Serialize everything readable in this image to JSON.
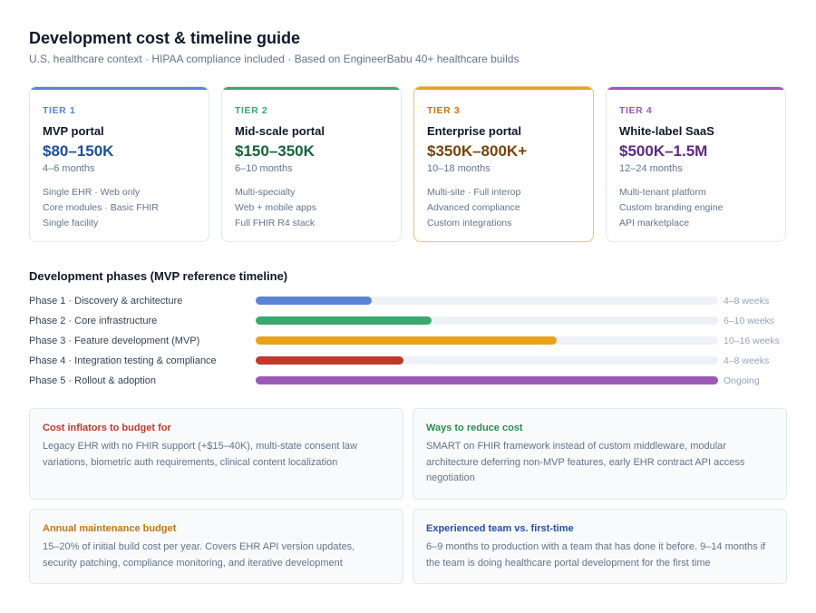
{
  "header": {
    "title": "Development cost & timeline guide",
    "subtitle": "U.S. healthcare context · HIPAA compliance included · Based on EngineerBabu 40+ healthcare builds"
  },
  "tiers": [
    {
      "label": "TIER 1",
      "name": "MVP portal",
      "price": "$80–150K",
      "duration": "4–6 months",
      "features": [
        "Single EHR · Web only",
        "Core modules · Basic FHIR",
        "Single facility"
      ],
      "accent": "#5b84d6",
      "label_color": "#5b84d6",
      "price_color": "#1d4f9a",
      "border": "#e2e8f0"
    },
    {
      "label": "TIER 2",
      "name": "Mid-scale portal",
      "price": "$150–350K",
      "duration": "6–10 months",
      "features": [
        "Multi-specialty",
        "Web + mobile apps",
        "Full FHIR R4 stack"
      ],
      "accent": "#3aa86f",
      "label_color": "#3aa86f",
      "price_color": "#14633b",
      "border": "#e2e8f0"
    },
    {
      "label": "TIER 3",
      "name": "Enterprise portal",
      "price": "$350K–800K+",
      "duration": "10–18 months",
      "features": [
        "Multi-site · Full interop",
        "Advanced compliance",
        "Custom integrations"
      ],
      "accent": "#e8a31a",
      "label_color": "#c7760f",
      "price_color": "#7a4309",
      "border": "#f0c36a"
    },
    {
      "label": "TIER 4",
      "name": "White-label SaaS",
      "price": "$500K–1.5M",
      "duration": "12–24 months",
      "features": [
        "Multi-tenant platform",
        "Custom branding engine",
        "API marketplace"
      ],
      "accent": "#9b59b6",
      "label_color": "#9b59b6",
      "price_color": "#5a2a82",
      "border": "#e2e8f0"
    }
  ],
  "phases": {
    "title": "Development phases (MVP reference timeline)",
    "items": [
      {
        "label": "Phase 1 · Discovery & architecture",
        "duration": "4–8 weeks",
        "fill": 0.25,
        "color": "#5b84d6"
      },
      {
        "label": "Phase 2 · Core infrastructure",
        "duration": "6–10 weeks",
        "fill": 0.38,
        "color": "#3aa86f"
      },
      {
        "label": "Phase 3 · Feature development (MVP)",
        "duration": "10–16 weeks",
        "fill": 0.65,
        "color": "#e8a31a"
      },
      {
        "label": "Phase 4 · Integration testing & compliance",
        "duration": "4–8 weeks",
        "fill": 0.32,
        "color": "#c0392b"
      },
      {
        "label": "Phase 5 · Rollout & adoption",
        "duration": "Ongoing",
        "fill": 1.0,
        "color": "#9b59b6"
      }
    ]
  },
  "notes": [
    {
      "title": "Cost inflators to budget for",
      "body": "Legacy EHR with no FHIR support (+$15–40K), multi-state consent law variations, biometric auth requirements, clinical content localization",
      "color": "#c0392b"
    },
    {
      "title": "Ways to reduce cost",
      "body": "SMART on FHIR framework instead of custom middleware, modular architecture deferring non-MVP features, early EHR contract API access negotiation",
      "color": "#2f8a4e"
    },
    {
      "title": "Annual maintenance budget",
      "body": "15–20% of initial build cost per year. Covers EHR API version updates, security patching, compliance monitoring, and iterative development",
      "color": "#c7760f"
    },
    {
      "title": "Experienced team vs. first-time",
      "body": "6–9 months to production with a team that has done it before. 9–14 months if the team is doing healthcare portal development for the first time",
      "color": "#2450a8"
    }
  ]
}
